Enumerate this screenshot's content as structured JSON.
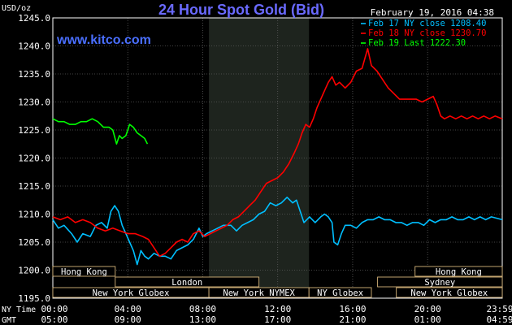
{
  "chart_data": {
    "type": "line",
    "title": "24 Hour Spot Gold (Bid)",
    "date": "February 19, 2016 04:38",
    "watermark": "www.kitco.com",
    "y_unit_label": "USD/oz",
    "ylim": [
      1195,
      1245
    ],
    "y_ticks": [
      "1245.0",
      "1240.0",
      "1235.0",
      "1230.0",
      "1225.0",
      "1220.0",
      "1215.0",
      "1210.0",
      "1205.0",
      "1200.0",
      "1195.0"
    ],
    "x_ticks": [
      {
        "hour": 0,
        "ny": "00:00",
        "gmt": "05:00"
      },
      {
        "hour": 4,
        "ny": "04:00",
        "gmt": "09:00"
      },
      {
        "hour": 8,
        "ny": "08:00",
        "gmt": "13:00"
      },
      {
        "hour": 12,
        "ny": "12:00",
        "gmt": "17:00"
      },
      {
        "hour": 16,
        "ny": "16:00",
        "gmt": "21:00"
      },
      {
        "hour": 20,
        "ny": "20:00",
        "gmt": "01:00"
      },
      {
        "hour": 23.983,
        "ny": "23:59",
        "gmt": "04:59"
      }
    ],
    "x_row_labels": {
      "ny": "NY Time",
      "gmt": "GMT"
    },
    "x_range_hours": [
      0,
      23.983
    ],
    "shaded_period_hours": [
      8.33,
      13.67
    ],
    "sessions": [
      {
        "label": "Hong Kong",
        "start": 0,
        "end": 3.33,
        "row": 0
      },
      {
        "label": "Hong Kong",
        "start": 19.33,
        "end": 23.983,
        "row": 0
      },
      {
        "label": "London",
        "start": 3.33,
        "end": 11.0,
        "row": 1
      },
      {
        "label": "Sydney",
        "start": 17.33,
        "end": 23.983,
        "row": 1
      },
      {
        "label": "New York Globex",
        "start": 0,
        "end": 8.33,
        "row": 2
      },
      {
        "label": "New York NYMEX",
        "start": 8.33,
        "end": 13.67,
        "row": 2
      },
      {
        "label": "NY Globex",
        "start": 13.67,
        "end": 17.0,
        "row": 2
      },
      {
        "label": "New York Globex",
        "start": 18.33,
        "end": 23.983,
        "row": 2
      }
    ],
    "legend_position": "top-right",
    "series": [
      {
        "name": "Feb 17 NY close 1208.40",
        "color": "#00BFFF",
        "points": [
          [
            0,
            1209.0
          ],
          [
            0.3,
            1207.5
          ],
          [
            0.6,
            1208.0
          ],
          [
            1.0,
            1206.5
          ],
          [
            1.3,
            1205.0
          ],
          [
            1.6,
            1206.5
          ],
          [
            2.0,
            1206.0
          ],
          [
            2.3,
            1208.0
          ],
          [
            2.6,
            1208.5
          ],
          [
            2.9,
            1207.5
          ],
          [
            3.1,
            1210.5
          ],
          [
            3.3,
            1211.5
          ],
          [
            3.5,
            1210.5
          ],
          [
            3.7,
            1208.0
          ],
          [
            3.9,
            1206.5
          ],
          [
            4.1,
            1205.0
          ],
          [
            4.3,
            1203.5
          ],
          [
            4.5,
            1201.0
          ],
          [
            4.7,
            1203.5
          ],
          [
            4.9,
            1202.5
          ],
          [
            5.1,
            1202.0
          ],
          [
            5.4,
            1203.0
          ],
          [
            5.7,
            1202.5
          ],
          [
            6.0,
            1202.5
          ],
          [
            6.3,
            1202.0
          ],
          [
            6.6,
            1203.5
          ],
          [
            6.9,
            1204.0
          ],
          [
            7.2,
            1204.5
          ],
          [
            7.5,
            1205.5
          ],
          [
            7.8,
            1207.5
          ],
          [
            8.0,
            1206.0
          ],
          [
            8.2,
            1206.5
          ],
          [
            8.5,
            1207.0
          ],
          [
            8.8,
            1207.5
          ],
          [
            9.1,
            1208.0
          ],
          [
            9.5,
            1208.0
          ],
          [
            9.8,
            1207.0
          ],
          [
            10.1,
            1208.0
          ],
          [
            10.4,
            1208.5
          ],
          [
            10.7,
            1209.0
          ],
          [
            11.0,
            1210.0
          ],
          [
            11.3,
            1210.5
          ],
          [
            11.6,
            1212.0
          ],
          [
            11.9,
            1211.5
          ],
          [
            12.2,
            1212.0
          ],
          [
            12.5,
            1213.0
          ],
          [
            12.8,
            1212.0
          ],
          [
            13.0,
            1212.5
          ],
          [
            13.2,
            1210.5
          ],
          [
            13.4,
            1208.5
          ],
          [
            13.7,
            1209.5
          ],
          [
            14.0,
            1208.5
          ],
          [
            14.3,
            1209.5
          ],
          [
            14.5,
            1210.0
          ],
          [
            14.7,
            1209.5
          ],
          [
            14.9,
            1208.5
          ],
          [
            15.0,
            1205.0
          ],
          [
            15.2,
            1204.5
          ],
          [
            15.4,
            1206.5
          ],
          [
            15.6,
            1208.0
          ],
          [
            15.9,
            1208.0
          ],
          [
            16.2,
            1207.5
          ],
          [
            16.5,
            1208.5
          ],
          [
            16.8,
            1209.0
          ],
          [
            17.1,
            1209.0
          ],
          [
            17.4,
            1209.5
          ],
          [
            17.7,
            1209.0
          ],
          [
            18.0,
            1209.0
          ],
          [
            18.3,
            1208.5
          ],
          [
            18.6,
            1208.5
          ],
          [
            18.9,
            1208.0
          ],
          [
            19.2,
            1208.5
          ],
          [
            19.5,
            1208.5
          ],
          [
            19.8,
            1208.0
          ],
          [
            20.1,
            1209.0
          ],
          [
            20.4,
            1208.5
          ],
          [
            20.7,
            1209.0
          ],
          [
            21.0,
            1209.0
          ],
          [
            21.3,
            1209.5
          ],
          [
            21.6,
            1209.0
          ],
          [
            21.9,
            1209.0
          ],
          [
            22.2,
            1209.5
          ],
          [
            22.5,
            1209.0
          ],
          [
            22.8,
            1209.5
          ],
          [
            23.1,
            1209.0
          ],
          [
            23.4,
            1209.5
          ],
          [
            23.983,
            1209.0
          ]
        ]
      },
      {
        "name": "Feb 18 NY close 1230.70",
        "color": "#FF0000",
        "points": [
          [
            0,
            1209.5
          ],
          [
            0.4,
            1209.0
          ],
          [
            0.8,
            1209.5
          ],
          [
            1.2,
            1208.5
          ],
          [
            1.6,
            1209.0
          ],
          [
            2.0,
            1208.5
          ],
          [
            2.4,
            1207.5
          ],
          [
            2.8,
            1207.0
          ],
          [
            3.2,
            1207.5
          ],
          [
            3.6,
            1207.0
          ],
          [
            4.0,
            1206.5
          ],
          [
            4.4,
            1206.5
          ],
          [
            4.8,
            1206.0
          ],
          [
            5.1,
            1205.5
          ],
          [
            5.4,
            1204.0
          ],
          [
            5.7,
            1202.5
          ],
          [
            6.0,
            1203.0
          ],
          [
            6.3,
            1204.0
          ],
          [
            6.6,
            1205.0
          ],
          [
            6.9,
            1205.5
          ],
          [
            7.2,
            1205.0
          ],
          [
            7.5,
            1206.5
          ],
          [
            7.8,
            1207.0
          ],
          [
            8.1,
            1206.0
          ],
          [
            8.4,
            1206.5
          ],
          [
            8.7,
            1207.0
          ],
          [
            9.0,
            1207.5
          ],
          [
            9.3,
            1208.0
          ],
          [
            9.6,
            1209.0
          ],
          [
            9.9,
            1209.5
          ],
          [
            10.2,
            1210.5
          ],
          [
            10.5,
            1211.5
          ],
          [
            10.8,
            1212.5
          ],
          [
            11.1,
            1214.0
          ],
          [
            11.4,
            1215.5
          ],
          [
            11.7,
            1216.0
          ],
          [
            12.0,
            1216.5
          ],
          [
            12.3,
            1217.5
          ],
          [
            12.6,
            1219.0
          ],
          [
            12.9,
            1221.0
          ],
          [
            13.1,
            1222.5
          ],
          [
            13.3,
            1224.5
          ],
          [
            13.5,
            1226.0
          ],
          [
            13.7,
            1225.5
          ],
          [
            13.9,
            1227.0
          ],
          [
            14.1,
            1229.0
          ],
          [
            14.3,
            1230.5
          ],
          [
            14.5,
            1232.0
          ],
          [
            14.7,
            1233.5
          ],
          [
            14.9,
            1234.5
          ],
          [
            15.1,
            1233.0
          ],
          [
            15.3,
            1233.5
          ],
          [
            15.6,
            1232.5
          ],
          [
            15.9,
            1233.5
          ],
          [
            16.2,
            1235.5
          ],
          [
            16.5,
            1236.0
          ],
          [
            16.8,
            1239.5
          ],
          [
            17.0,
            1236.5
          ],
          [
            17.3,
            1235.5
          ],
          [
            17.6,
            1234.0
          ],
          [
            17.9,
            1232.5
          ],
          [
            18.2,
            1231.5
          ],
          [
            18.5,
            1230.5
          ],
          [
            18.8,
            1230.5
          ],
          [
            19.1,
            1230.5
          ],
          [
            19.4,
            1230.5
          ],
          [
            19.7,
            1230.0
          ],
          [
            20.0,
            1230.5
          ],
          [
            20.3,
            1231.0
          ],
          [
            20.5,
            1229.5
          ],
          [
            20.7,
            1227.5
          ],
          [
            20.9,
            1227.0
          ],
          [
            21.2,
            1227.5
          ],
          [
            21.5,
            1227.0
          ],
          [
            21.8,
            1227.5
          ],
          [
            22.1,
            1227.0
          ],
          [
            22.4,
            1227.5
          ],
          [
            22.7,
            1227.0
          ],
          [
            23.0,
            1227.5
          ],
          [
            23.3,
            1227.0
          ],
          [
            23.6,
            1227.5
          ],
          [
            23.983,
            1227.0
          ]
        ]
      },
      {
        "name": "Feb 19 Last 1222.30",
        "color": "#00FF00",
        "points": [
          [
            0,
            1227.0
          ],
          [
            0.3,
            1226.5
          ],
          [
            0.6,
            1226.5
          ],
          [
            0.9,
            1226.0
          ],
          [
            1.2,
            1226.0
          ],
          [
            1.5,
            1226.5
          ],
          [
            1.8,
            1226.5
          ],
          [
            2.1,
            1227.0
          ],
          [
            2.4,
            1226.5
          ],
          [
            2.7,
            1225.5
          ],
          [
            3.0,
            1225.5
          ],
          [
            3.2,
            1225.0
          ],
          [
            3.4,
            1222.5
          ],
          [
            3.55,
            1224.0
          ],
          [
            3.7,
            1223.5
          ],
          [
            3.9,
            1224.0
          ],
          [
            4.1,
            1226.0
          ],
          [
            4.3,
            1225.5
          ],
          [
            4.5,
            1224.5
          ],
          [
            4.7,
            1224.0
          ],
          [
            4.9,
            1223.5
          ],
          [
            5.05,
            1222.5
          ]
        ]
      }
    ]
  }
}
